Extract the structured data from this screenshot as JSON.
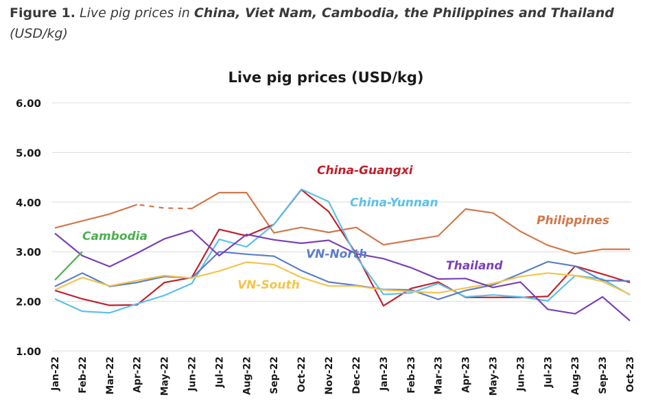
{
  "caption": {
    "lead": "Figure 1.",
    "intro": "Live pig prices in",
    "countries": "China, Viet Nam, Cambodia, the Philippines and Thailand",
    "unit": "(USD/kg)"
  },
  "chart_data": {
    "type": "line",
    "title": "Live pig prices (USD/kg)",
    "xlabel": "",
    "ylabel": "",
    "ylim": [
      1.0,
      6.0
    ],
    "yticks": [
      "1.00",
      "2.00",
      "3.00",
      "4.00",
      "5.00",
      "6.00"
    ],
    "grid": true,
    "categories": [
      "Jan-22",
      "Feb-22",
      "Mar-22",
      "Apr-22",
      "May-22",
      "Jun-22",
      "Jul-22",
      "Aug-22",
      "Sep-22",
      "Oct-22",
      "Nov-22",
      "Dec-22",
      "Jan-23",
      "Feb-23",
      "Mar-23",
      "Apr-23",
      "May-23",
      "Jun-23",
      "Jul-23",
      "Aug-23",
      "Sep-23",
      "Oct-23"
    ],
    "series": [
      {
        "name": "Philippines",
        "color": "#d0784a",
        "dashed_segment": [
          3,
          5
        ],
        "values": [
          3.48,
          3.62,
          3.76,
          3.95,
          3.88,
          3.87,
          4.19,
          4.19,
          3.38,
          3.49,
          3.39,
          3.49,
          3.14,
          3.23,
          3.32,
          3.86,
          3.78,
          3.41,
          3.13,
          2.96,
          3.05,
          3.05
        ]
      },
      {
        "name": "China-Guangxi",
        "color": "#c0202a",
        "values": [
          2.22,
          2.05,
          1.92,
          1.93,
          2.38,
          2.48,
          3.45,
          3.32,
          3.55,
          4.25,
          3.81,
          2.96,
          1.91,
          2.26,
          2.39,
          2.08,
          2.08,
          2.08,
          2.1,
          2.71,
          2.55,
          2.38
        ]
      },
      {
        "name": "China-Yunnan",
        "color": "#5bc0ea",
        "values": [
          2.05,
          1.8,
          1.77,
          1.95,
          2.12,
          2.36,
          3.25,
          3.1,
          3.55,
          4.26,
          4.01,
          2.9,
          2.14,
          2.17,
          2.36,
          2.09,
          2.13,
          2.09,
          2.01,
          2.52,
          2.45,
          2.13
        ]
      },
      {
        "name": "VN-North",
        "color": "#5b7ec8",
        "values": [
          2.3,
          2.57,
          2.3,
          2.38,
          2.5,
          2.47,
          3.0,
          2.95,
          2.91,
          2.62,
          2.39,
          2.32,
          2.24,
          2.23,
          2.04,
          2.22,
          2.33,
          2.56,
          2.8,
          2.71,
          2.42,
          2.41
        ]
      },
      {
        "name": "VN-South",
        "color": "#f5c34a",
        "values": [
          2.23,
          2.48,
          2.31,
          2.42,
          2.52,
          2.47,
          2.61,
          2.79,
          2.74,
          2.48,
          2.31,
          2.31,
          2.23,
          2.2,
          2.17,
          2.27,
          2.36,
          2.5,
          2.57,
          2.52,
          2.4,
          2.14
        ]
      },
      {
        "name": "Thailand",
        "color": "#7a3fb6",
        "values": [
          3.37,
          2.92,
          2.7,
          2.97,
          3.26,
          3.43,
          2.92,
          3.35,
          3.24,
          3.17,
          3.23,
          2.96,
          2.86,
          2.68,
          2.45,
          2.46,
          2.28,
          2.39,
          1.84,
          1.75,
          2.09,
          1.61
        ]
      },
      {
        "name": "Cambodia",
        "color": "#4caf50",
        "values": [
          2.43,
          3.0,
          null,
          null,
          null,
          null,
          null,
          null,
          null,
          null,
          null,
          null,
          null,
          null,
          null,
          null,
          null,
          null,
          null,
          null,
          null,
          null
        ]
      }
    ]
  }
}
